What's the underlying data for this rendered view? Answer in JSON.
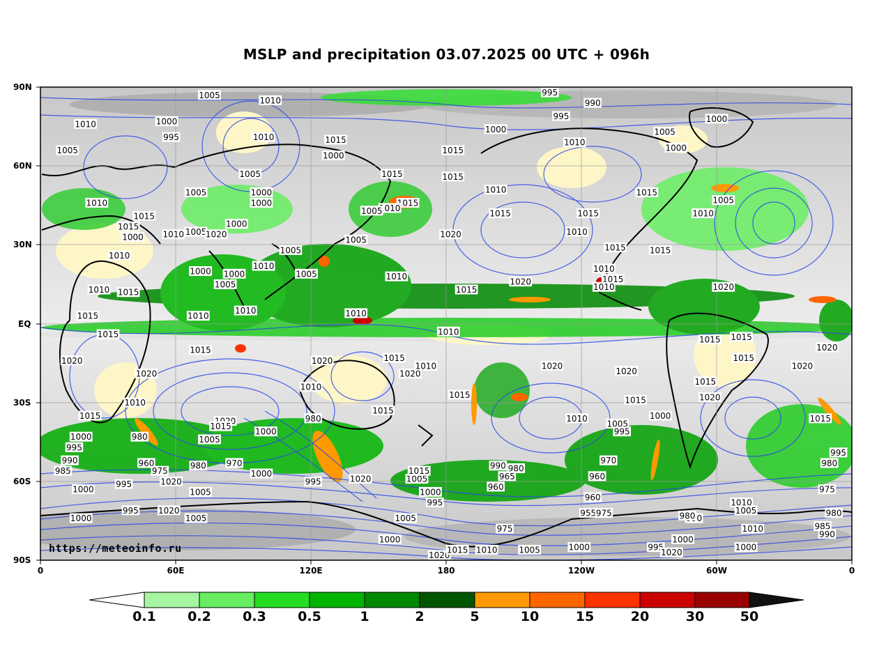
{
  "title": "MSLP and precipitation 03.07.2025 00 UTC + 096h",
  "credit": "https://meteoinfo.ru",
  "lat_labels": [
    "90N",
    "60N",
    "30N",
    "EQ",
    "30S",
    "60S",
    "90S"
  ],
  "lon_labels": [
    "0",
    "60E",
    "120E",
    "180",
    "120W",
    "60W",
    "0"
  ],
  "colorbar": {
    "labels": [
      "0.1",
      "0.2",
      "0.3",
      "0.5",
      "1",
      "2",
      "5",
      "10",
      "15",
      "20",
      "30",
      "50"
    ],
    "colors": [
      "#ffffff",
      "#a6f5a0",
      "#66ee60",
      "#22dd22",
      "#00b400",
      "#008800",
      "#005500",
      "#ff9900",
      "#ff6600",
      "#ff3300",
      "#cc0000",
      "#990000",
      "#111111"
    ]
  },
  "isobars": [
    {
      "t": "1005",
      "lon": 75,
      "lat": 87
    },
    {
      "t": "1010",
      "lon": 102,
      "lat": 85
    },
    {
      "t": "1010",
      "lon": 20,
      "lat": 76
    },
    {
      "t": "1000",
      "lon": 56,
      "lat": 77
    },
    {
      "t": "995",
      "lon": 58,
      "lat": 71
    },
    {
      "t": "1005",
      "lon": 12,
      "lat": 66
    },
    {
      "t": "1010",
      "lon": 99,
      "lat": 71
    },
    {
      "t": "1015",
      "lon": 131,
      "lat": 70
    },
    {
      "t": "1000",
      "lon": 130,
      "lat": 64
    },
    {
      "t": "1005",
      "lon": 93,
      "lat": 57
    },
    {
      "t": "1005",
      "lon": 69,
      "lat": 50
    },
    {
      "t": "1000",
      "lon": 98,
      "lat": 50
    },
    {
      "t": "1000",
      "lon": 98,
      "lat": 46
    },
    {
      "t": "1010",
      "lon": 25,
      "lat": 46
    },
    {
      "t": "1015",
      "lon": 46,
      "lat": 41
    },
    {
      "t": "1015",
      "lon": 39,
      "lat": 37
    },
    {
      "t": "1000",
      "lon": 41,
      "lat": 33
    },
    {
      "t": "1010",
      "lon": 59,
      "lat": 34
    },
    {
      "t": "1005",
      "lon": 69,
      "lat": 35
    },
    {
      "t": "1020",
      "lon": 78,
      "lat": 34
    },
    {
      "t": "1000",
      "lon": 87,
      "lat": 38
    },
    {
      "t": "1005",
      "lon": 111,
      "lat": 28
    },
    {
      "t": "1010",
      "lon": 35,
      "lat": 26
    },
    {
      "t": "1000",
      "lon": 71,
      "lat": 20
    },
    {
      "t": "1000",
      "lon": 86,
      "lat": 19
    },
    {
      "t": "1005",
      "lon": 82,
      "lat": 15
    },
    {
      "t": "1010",
      "lon": 99,
      "lat": 22
    },
    {
      "t": "1005",
      "lon": 118,
      "lat": 19
    },
    {
      "t": "1010",
      "lon": 26,
      "lat": 13
    },
    {
      "t": "1015",
      "lon": 39,
      "lat": 12
    },
    {
      "t": "1010",
      "lon": 91,
      "lat": 5
    },
    {
      "t": "1010",
      "lon": 70,
      "lat": 3
    },
    {
      "t": "1015",
      "lon": 21,
      "lat": 3
    },
    {
      "t": "1015",
      "lon": 30,
      "lat": -4
    },
    {
      "t": "1015",
      "lon": 71,
      "lat": -10
    },
    {
      "t": "1020",
      "lon": 14,
      "lat": -14
    },
    {
      "t": "1020",
      "lon": 47,
      "lat": -19
    },
    {
      "t": "1010",
      "lon": 42,
      "lat": -30
    },
    {
      "t": "1015",
      "lon": 22,
      "lat": -35
    },
    {
      "t": "1020",
      "lon": 82,
      "lat": -37
    },
    {
      "t": "1015",
      "lon": 80,
      "lat": -39
    },
    {
      "t": "1005",
      "lon": 75,
      "lat": -44
    },
    {
      "t": "1000",
      "lon": 100,
      "lat": -41
    },
    {
      "t": "980",
      "lon": 44,
      "lat": -43
    },
    {
      "t": "995",
      "lon": 15,
      "lat": -47
    },
    {
      "t": "1000",
      "lon": 18,
      "lat": -43
    },
    {
      "t": "990",
      "lon": 13,
      "lat": -52
    },
    {
      "t": "985",
      "lon": 10,
      "lat": -56
    },
    {
      "t": "960",
      "lon": 47,
      "lat": -53
    },
    {
      "t": "975",
      "lon": 53,
      "lat": -56
    },
    {
      "t": "970",
      "lon": 86,
      "lat": -53
    },
    {
      "t": "980",
      "lon": 70,
      "lat": -54
    },
    {
      "t": "1000",
      "lon": 98,
      "lat": -57
    },
    {
      "t": "1020",
      "lon": 58,
      "lat": -60
    },
    {
      "t": "995",
      "lon": 37,
      "lat": -61
    },
    {
      "t": "1000",
      "lon": 19,
      "lat": -63
    },
    {
      "t": "1005",
      "lon": 71,
      "lat": -64
    },
    {
      "t": "980",
      "lon": 121,
      "lat": -36
    },
    {
      "t": "995",
      "lon": 121,
      "lat": -60
    },
    {
      "t": "1020",
      "lon": 142,
      "lat": -59
    },
    {
      "t": "1020",
      "lon": 125,
      "lat": -14
    },
    {
      "t": "1010",
      "lon": 120,
      "lat": -24
    },
    {
      "t": "1015",
      "lon": 152,
      "lat": -33
    },
    {
      "t": "1015",
      "lon": 157,
      "lat": -13
    },
    {
      "t": "1020",
      "lon": 164,
      "lat": -19
    },
    {
      "t": "1010",
      "lon": 140,
      "lat": 4
    },
    {
      "t": "1010",
      "lon": 158,
      "lat": 18
    },
    {
      "t": "1010",
      "lon": 181,
      "lat": -3
    },
    {
      "t": "1010",
      "lon": 171,
      "lat": -16
    },
    {
      "t": "1015",
      "lon": 189,
      "lat": 13
    },
    {
      "t": "1020",
      "lon": 213,
      "lat": 16
    },
    {
      "t": "1015",
      "lon": 186,
      "lat": -27
    },
    {
      "t": "1020",
      "lon": 227,
      "lat": -16
    },
    {
      "t": "1020",
      "lon": 260,
      "lat": -18
    },
    {
      "t": "1015",
      "lon": 264,
      "lat": -29
    },
    {
      "t": "1010",
      "lon": 238,
      "lat": -36
    },
    {
      "t": "1005",
      "lon": 256,
      "lat": -38
    },
    {
      "t": "995",
      "lon": 258,
      "lat": -41
    },
    {
      "t": "1000",
      "lon": 275,
      "lat": -35
    },
    {
      "t": "1020",
      "lon": 182,
      "lat": 34
    },
    {
      "t": "1015",
      "lon": 163,
      "lat": 46
    },
    {
      "t": "1015",
      "lon": 204,
      "lat": 42
    },
    {
      "t": "1010",
      "lon": 202,
      "lat": 51
    },
    {
      "t": "1015",
      "lon": 183,
      "lat": 56
    },
    {
      "t": "1015",
      "lon": 156,
      "lat": 57
    },
    {
      "t": "1010",
      "lon": 155,
      "lat": 44
    },
    {
      "t": "1005",
      "lon": 147,
      "lat": 43
    },
    {
      "t": "1005",
      "lon": 140,
      "lat": 32
    },
    {
      "t": "1015",
      "lon": 183,
      "lat": 66
    },
    {
      "t": "1000",
      "lon": 202,
      "lat": 74
    },
    {
      "t": "995",
      "lon": 231,
      "lat": 79
    },
    {
      "t": "990",
      "lon": 245,
      "lat": 84
    },
    {
      "t": "995",
      "lon": 226,
      "lat": 88
    },
    {
      "t": "1010",
      "lon": 237,
      "lat": 69
    },
    {
      "t": "1005",
      "lon": 277,
      "lat": 73
    },
    {
      "t": "1000",
      "lon": 282,
      "lat": 67
    },
    {
      "t": "1000",
      "lon": 300,
      "lat": 78
    },
    {
      "t": "1015",
      "lon": 269,
      "lat": 50
    },
    {
      "t": "1005",
      "lon": 303,
      "lat": 47
    },
    {
      "t": "1010",
      "lon": 294,
      "lat": 42
    },
    {
      "t": "1015",
      "lon": 243,
      "lat": 42
    },
    {
      "t": "1010",
      "lon": 238,
      "lat": 35
    },
    {
      "t": "1015",
      "lon": 255,
      "lat": 29
    },
    {
      "t": "1015",
      "lon": 275,
      "lat": 28
    },
    {
      "t": "1015",
      "lon": 254,
      "lat": 17
    },
    {
      "t": "1010",
      "lon": 250,
      "lat": 14
    },
    {
      "t": "1010",
      "lon": 250,
      "lat": 21
    },
    {
      "t": "1020",
      "lon": 303,
      "lat": 14
    },
    {
      "t": "1015",
      "lon": 297,
      "lat": -6
    },
    {
      "t": "1015",
      "lon": 311,
      "lat": -5
    },
    {
      "t": "1015",
      "lon": 312,
      "lat": -13
    },
    {
      "t": "1020",
      "lon": 297,
      "lat": -28
    },
    {
      "t": "1015",
      "lon": 295,
      "lat": -22
    },
    {
      "t": "1020",
      "lon": 338,
      "lat": -16
    },
    {
      "t": "1020",
      "lon": 349,
      "lat": -9
    },
    {
      "t": "1015",
      "lon": 346,
      "lat": -36
    },
    {
      "t": "995",
      "lon": 354,
      "lat": -49
    },
    {
      "t": "980",
      "lon": 350,
      "lat": -53
    },
    {
      "t": "975",
      "lon": 349,
      "lat": -63
    },
    {
      "t": "1010",
      "lon": 311,
      "lat": -68
    },
    {
      "t": "1005",
      "lon": 313,
      "lat": -71
    },
    {
      "t": "985",
      "lon": 347,
      "lat": -77
    },
    {
      "t": "990",
      "lon": 349,
      "lat": -80
    },
    {
      "t": "980",
      "lon": 352,
      "lat": -72
    },
    {
      "t": "1000",
      "lon": 285,
      "lat": -82
    },
    {
      "t": "995",
      "lon": 273,
      "lat": -85
    },
    {
      "t": "1020",
      "lon": 280,
      "lat": -87
    },
    {
      "t": "1010",
      "lon": 316,
      "lat": -78
    },
    {
      "t": "1000",
      "lon": 313,
      "lat": -85
    },
    {
      "t": "990",
      "lon": 290,
      "lat": -74
    },
    {
      "t": "980",
      "lon": 287,
      "lat": -73
    },
    {
      "t": "960",
      "lon": 245,
      "lat": -66
    },
    {
      "t": "955",
      "lon": 243,
      "lat": -72
    },
    {
      "t": "975",
      "lon": 250,
      "lat": -72
    },
    {
      "t": "960",
      "lon": 247,
      "lat": -58
    },
    {
      "t": "970",
      "lon": 252,
      "lat": -52
    },
    {
      "t": "990",
      "lon": 203,
      "lat": -54
    },
    {
      "t": "980",
      "lon": 211,
      "lat": -55
    },
    {
      "t": "965",
      "lon": 207,
      "lat": -58
    },
    {
      "t": "960",
      "lon": 202,
      "lat": -62
    },
    {
      "t": "1005",
      "lon": 167,
      "lat": -59
    },
    {
      "t": "1015",
      "lon": 168,
      "lat": -56
    },
    {
      "t": "1000",
      "lon": 173,
      "lat": -64
    },
    {
      "t": "995",
      "lon": 175,
      "lat": -68
    },
    {
      "t": "1005",
      "lon": 162,
      "lat": -74
    },
    {
      "t": "1000",
      "lon": 155,
      "lat": -82
    },
    {
      "t": "1020",
      "lon": 177,
      "lat": -88
    },
    {
      "t": "1015",
      "lon": 185,
      "lat": -86
    },
    {
      "t": "1010",
      "lon": 198,
      "lat": -86
    },
    {
      "t": "1005",
      "lon": 217,
      "lat": -86
    },
    {
      "t": "1000",
      "lon": 239,
      "lat": -85
    },
    {
      "t": "975",
      "lon": 206,
      "lat": -78
    },
    {
      "t": "1000",
      "lon": 18,
      "lat": -74
    },
    {
      "t": "995",
      "lon": 40,
      "lat": -71
    },
    {
      "t": "1020",
      "lon": 57,
      "lat": -71
    },
    {
      "t": "1005",
      "lon": 69,
      "lat": -74
    }
  ]
}
